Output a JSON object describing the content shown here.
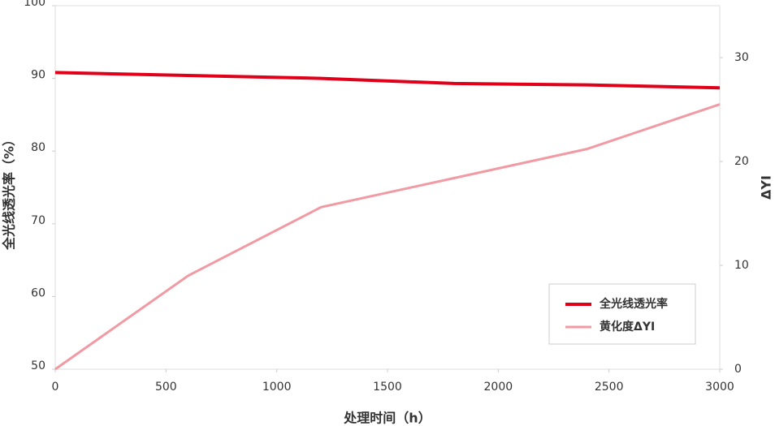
{
  "chart_data": {
    "type": "line",
    "x_label": "处理时间（h）",
    "y_label": "全光线透光率（%）",
    "y2_label": "ΔYI",
    "x": [
      0,
      600,
      1200,
      1800,
      2400,
      3000
    ],
    "series": [
      {
        "name": "全光线透光率",
        "color": "#e0001a",
        "values": [
          90.8,
          90.4,
          90.0,
          89.3,
          89.1,
          88.7
        ]
      },
      {
        "name": "黄化度ΔYI",
        "color": "#f29aa3",
        "axis": "y2",
        "values": [
          0,
          9.0,
          15.6,
          18.4,
          21.2,
          25.5
        ]
      }
    ],
    "xlim": [
      0,
      3000
    ],
    "xticks": [
      0,
      500,
      1000,
      1500,
      2000,
      2500,
      3000
    ],
    "ylim": [
      50,
      100
    ],
    "yticks": [
      50,
      60,
      70,
      80,
      90,
      100
    ],
    "y2lim": [
      0,
      35
    ],
    "y2ticks": [
      0,
      10,
      20,
      30
    ],
    "legend": "lower-right"
  }
}
